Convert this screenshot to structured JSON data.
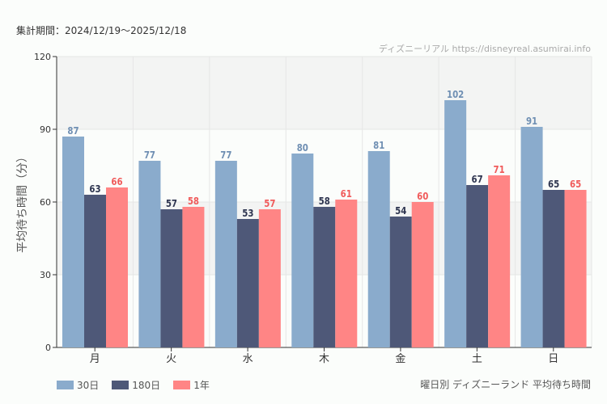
{
  "period": "集計期間：2024/12/19〜2025/12/18",
  "credit": "ディズニーリアル https://disneyreal.asumirai.info",
  "subtitle": "曜日別 ディズニーランド 平均待ち時間",
  "chart_data": {
    "type": "bar",
    "ylabel": "平均待ち時間（分）",
    "ylim": [
      0,
      120
    ],
    "yticks": [
      0,
      30,
      60,
      90,
      120
    ],
    "grid": true,
    "legend": "bottom-left",
    "categories": [
      "月",
      "火",
      "水",
      "木",
      "金",
      "土",
      "日"
    ],
    "series": [
      {
        "name": "30日",
        "color": "#8aabcc",
        "label_color": "#6f8fb3",
        "values": [
          87,
          77,
          77,
          80,
          81,
          102,
          91
        ]
      },
      {
        "name": "180日",
        "color": "#4e5878",
        "label_color": "#2e3550",
        "values": [
          63,
          57,
          53,
          58,
          54,
          67,
          65
        ]
      },
      {
        "name": "1年",
        "color": "#ff8585",
        "label_color": "#f05a5a",
        "values": [
          66,
          58,
          57,
          61,
          60,
          71,
          65
        ]
      }
    ]
  }
}
